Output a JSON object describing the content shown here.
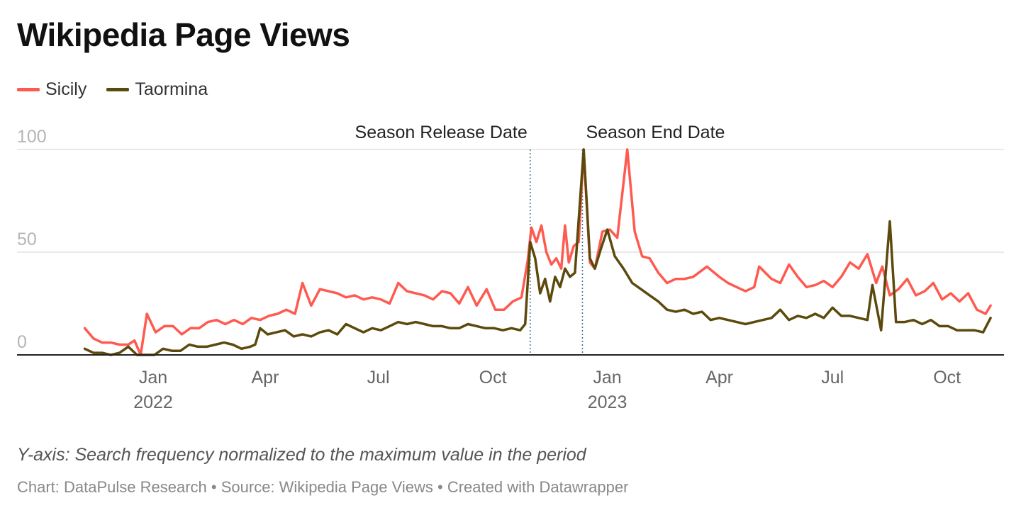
{
  "title": "Wikipedia Page Views",
  "notes": "Y-axis: Search frequency normalized to the maximum value in the period",
  "credit": "Chart: DataPulse Research • Source: Wikipedia Page Views • Created with Datawrapper",
  "chart_data": {
    "type": "line",
    "title": "Wikipedia Page Views",
    "xlabel": "",
    "ylabel": "",
    "ylim": [
      0,
      100
    ],
    "grid": true,
    "legend_placement": "top-left",
    "y_ticks": [
      {
        "value": 0,
        "label": "0"
      },
      {
        "value": 50,
        "label": "50"
      },
      {
        "value": 100,
        "label": "100"
      }
    ],
    "x_ticks": [
      {
        "date": "2022-01-01",
        "label": "Jan",
        "year": "2022"
      },
      {
        "date": "2022-04-01",
        "label": "Apr",
        "year": ""
      },
      {
        "date": "2022-07-01",
        "label": "Jul",
        "year": ""
      },
      {
        "date": "2022-10-01",
        "label": "Oct",
        "year": ""
      },
      {
        "date": "2023-01-01",
        "label": "Jan",
        "year": "2023"
      },
      {
        "date": "2023-04-01",
        "label": "Apr",
        "year": ""
      },
      {
        "date": "2023-07-01",
        "label": "Jul",
        "year": ""
      },
      {
        "date": "2023-10-01",
        "label": "Oct",
        "year": ""
      }
    ],
    "annotations": [
      {
        "date": "2022-10-31",
        "label": "Season Release Date",
        "align": "left"
      },
      {
        "date": "2022-12-12",
        "label": "Season End Date",
        "align": "right"
      }
    ],
    "series": [
      {
        "name": "Sicily",
        "color": "#ff5a4f",
        "points": [
          [
            "2021-11-07",
            13
          ],
          [
            "2021-11-14",
            8
          ],
          [
            "2021-11-21",
            6
          ],
          [
            "2021-11-28",
            6
          ],
          [
            "2021-12-05",
            5
          ],
          [
            "2021-12-12",
            5
          ],
          [
            "2021-12-17",
            7
          ],
          [
            "2021-12-22",
            0
          ],
          [
            "2021-12-27",
            20
          ],
          [
            "2022-01-03",
            11
          ],
          [
            "2022-01-10",
            14
          ],
          [
            "2022-01-17",
            14
          ],
          [
            "2022-01-24",
            10
          ],
          [
            "2022-01-31",
            13
          ],
          [
            "2022-02-07",
            13
          ],
          [
            "2022-02-14",
            16
          ],
          [
            "2022-02-21",
            17
          ],
          [
            "2022-02-28",
            15
          ],
          [
            "2022-03-07",
            17
          ],
          [
            "2022-03-14",
            15
          ],
          [
            "2022-03-21",
            18
          ],
          [
            "2022-03-28",
            17
          ],
          [
            "2022-04-04",
            19
          ],
          [
            "2022-04-11",
            20
          ],
          [
            "2022-04-18",
            22
          ],
          [
            "2022-04-25",
            20
          ],
          [
            "2022-05-01",
            35
          ],
          [
            "2022-05-08",
            24
          ],
          [
            "2022-05-15",
            32
          ],
          [
            "2022-05-22",
            31
          ],
          [
            "2022-05-29",
            30
          ],
          [
            "2022-06-05",
            28
          ],
          [
            "2022-06-12",
            29
          ],
          [
            "2022-06-19",
            27
          ],
          [
            "2022-06-26",
            28
          ],
          [
            "2022-07-03",
            27
          ],
          [
            "2022-07-10",
            25
          ],
          [
            "2022-07-17",
            35
          ],
          [
            "2022-07-24",
            31
          ],
          [
            "2022-07-31",
            30
          ],
          [
            "2022-08-07",
            29
          ],
          [
            "2022-08-14",
            27
          ],
          [
            "2022-08-21",
            31
          ],
          [
            "2022-08-28",
            30
          ],
          [
            "2022-09-04",
            25
          ],
          [
            "2022-09-11",
            33
          ],
          [
            "2022-09-18",
            24
          ],
          [
            "2022-09-26",
            32
          ],
          [
            "2022-10-03",
            22
          ],
          [
            "2022-10-10",
            22
          ],
          [
            "2022-10-17",
            26
          ],
          [
            "2022-10-24",
            28
          ],
          [
            "2022-10-29",
            46
          ],
          [
            "2022-11-01",
            62
          ],
          [
            "2022-11-05",
            55
          ],
          [
            "2022-11-09",
            63
          ],
          [
            "2022-11-13",
            50
          ],
          [
            "2022-11-17",
            44
          ],
          [
            "2022-11-21",
            47
          ],
          [
            "2022-11-25",
            42
          ],
          [
            "2022-11-28",
            63
          ],
          [
            "2022-12-01",
            45
          ],
          [
            "2022-12-05",
            53
          ],
          [
            "2022-12-09",
            55
          ],
          [
            "2022-12-13",
            100
          ],
          [
            "2022-12-18",
            45
          ],
          [
            "2022-12-22",
            42
          ],
          [
            "2022-12-28",
            60
          ],
          [
            "2023-01-03",
            61
          ],
          [
            "2023-01-09",
            57
          ],
          [
            "2023-01-17",
            100
          ],
          [
            "2023-01-23",
            60
          ],
          [
            "2023-01-29",
            48
          ],
          [
            "2023-02-04",
            47
          ],
          [
            "2023-02-11",
            40
          ],
          [
            "2023-02-18",
            35
          ],
          [
            "2023-02-25",
            37
          ],
          [
            "2023-03-04",
            37
          ],
          [
            "2023-03-11",
            38
          ],
          [
            "2023-03-22",
            43
          ],
          [
            "2023-04-01",
            38
          ],
          [
            "2023-04-08",
            35
          ],
          [
            "2023-04-15",
            33
          ],
          [
            "2023-04-22",
            31
          ],
          [
            "2023-04-29",
            33
          ],
          [
            "2023-05-03",
            43
          ],
          [
            "2023-05-13",
            37
          ],
          [
            "2023-05-20",
            35
          ],
          [
            "2023-05-27",
            44
          ],
          [
            "2023-06-03",
            38
          ],
          [
            "2023-06-10",
            33
          ],
          [
            "2023-06-17",
            34
          ],
          [
            "2023-06-24",
            36
          ],
          [
            "2023-07-01",
            33
          ],
          [
            "2023-07-08",
            38
          ],
          [
            "2023-07-15",
            45
          ],
          [
            "2023-07-22",
            42
          ],
          [
            "2023-07-29",
            49
          ],
          [
            "2023-08-05",
            35
          ],
          [
            "2023-08-10",
            43
          ],
          [
            "2023-08-16",
            29
          ],
          [
            "2023-08-23",
            32
          ],
          [
            "2023-08-30",
            37
          ],
          [
            "2023-09-06",
            29
          ],
          [
            "2023-09-13",
            31
          ],
          [
            "2023-09-20",
            35
          ],
          [
            "2023-09-27",
            27
          ],
          [
            "2023-10-04",
            30
          ],
          [
            "2023-10-11",
            26
          ],
          [
            "2023-10-18",
            30
          ],
          [
            "2023-10-25",
            22
          ],
          [
            "2023-11-01",
            20
          ],
          [
            "2023-11-05",
            24
          ]
        ]
      },
      {
        "name": "Taormina",
        "color": "#5c4a0c",
        "points": [
          [
            "2021-11-07",
            3
          ],
          [
            "2021-11-14",
            1
          ],
          [
            "2021-11-21",
            1
          ],
          [
            "2021-11-28",
            0
          ],
          [
            "2021-12-05",
            1
          ],
          [
            "2021-12-12",
            4
          ],
          [
            "2021-12-19",
            0
          ],
          [
            "2021-12-26",
            0
          ],
          [
            "2022-01-02",
            0
          ],
          [
            "2022-01-09",
            3
          ],
          [
            "2022-01-16",
            2
          ],
          [
            "2022-01-23",
            2
          ],
          [
            "2022-01-30",
            5
          ],
          [
            "2022-02-06",
            4
          ],
          [
            "2022-02-13",
            4
          ],
          [
            "2022-02-20",
            5
          ],
          [
            "2022-02-27",
            6
          ],
          [
            "2022-03-06",
            5
          ],
          [
            "2022-03-13",
            3
          ],
          [
            "2022-03-20",
            4
          ],
          [
            "2022-03-24",
            5
          ],
          [
            "2022-03-28",
            13
          ],
          [
            "2022-04-03",
            10
          ],
          [
            "2022-04-10",
            11
          ],
          [
            "2022-04-17",
            12
          ],
          [
            "2022-04-24",
            9
          ],
          [
            "2022-05-01",
            10
          ],
          [
            "2022-05-08",
            9
          ],
          [
            "2022-05-15",
            11
          ],
          [
            "2022-05-22",
            12
          ],
          [
            "2022-05-29",
            10
          ],
          [
            "2022-06-05",
            15
          ],
          [
            "2022-06-12",
            13
          ],
          [
            "2022-06-19",
            11
          ],
          [
            "2022-06-26",
            13
          ],
          [
            "2022-07-03",
            12
          ],
          [
            "2022-07-10",
            14
          ],
          [
            "2022-07-17",
            16
          ],
          [
            "2022-07-24",
            15
          ],
          [
            "2022-07-31",
            16
          ],
          [
            "2022-08-07",
            15
          ],
          [
            "2022-08-14",
            14
          ],
          [
            "2022-08-21",
            14
          ],
          [
            "2022-08-28",
            13
          ],
          [
            "2022-09-04",
            13
          ],
          [
            "2022-09-11",
            15
          ],
          [
            "2022-09-18",
            14
          ],
          [
            "2022-09-25",
            13
          ],
          [
            "2022-10-02",
            13
          ],
          [
            "2022-10-09",
            12
          ],
          [
            "2022-10-16",
            13
          ],
          [
            "2022-10-23",
            12
          ],
          [
            "2022-10-27",
            15
          ],
          [
            "2022-10-31",
            55
          ],
          [
            "2022-11-04",
            47
          ],
          [
            "2022-11-08",
            30
          ],
          [
            "2022-11-12",
            37
          ],
          [
            "2022-11-16",
            26
          ],
          [
            "2022-11-20",
            38
          ],
          [
            "2022-11-24",
            33
          ],
          [
            "2022-11-28",
            42
          ],
          [
            "2022-12-02",
            38
          ],
          [
            "2022-12-06",
            40
          ],
          [
            "2022-12-13",
            100
          ],
          [
            "2022-12-18",
            47
          ],
          [
            "2022-12-22",
            42
          ],
          [
            "2022-12-27",
            52
          ],
          [
            "2023-01-01",
            61
          ],
          [
            "2023-01-07",
            48
          ],
          [
            "2023-01-14",
            42
          ],
          [
            "2023-01-21",
            35
          ],
          [
            "2023-01-28",
            32
          ],
          [
            "2023-02-04",
            29
          ],
          [
            "2023-02-11",
            26
          ],
          [
            "2023-02-18",
            22
          ],
          [
            "2023-02-25",
            21
          ],
          [
            "2023-03-04",
            22
          ],
          [
            "2023-03-11",
            20
          ],
          [
            "2023-03-18",
            21
          ],
          [
            "2023-03-25",
            17
          ],
          [
            "2023-04-01",
            18
          ],
          [
            "2023-04-08",
            17
          ],
          [
            "2023-04-15",
            16
          ],
          [
            "2023-04-22",
            15
          ],
          [
            "2023-04-29",
            16
          ],
          [
            "2023-05-06",
            17
          ],
          [
            "2023-05-13",
            18
          ],
          [
            "2023-05-20",
            22
          ],
          [
            "2023-05-27",
            17
          ],
          [
            "2023-06-03",
            19
          ],
          [
            "2023-06-10",
            18
          ],
          [
            "2023-06-17",
            20
          ],
          [
            "2023-06-24",
            18
          ],
          [
            "2023-07-01",
            23
          ],
          [
            "2023-07-08",
            19
          ],
          [
            "2023-07-15",
            19
          ],
          [
            "2023-07-22",
            18
          ],
          [
            "2023-07-29",
            17
          ],
          [
            "2023-08-02",
            34
          ],
          [
            "2023-08-09",
            12
          ],
          [
            "2023-08-16",
            65
          ],
          [
            "2023-08-21",
            16
          ],
          [
            "2023-08-28",
            16
          ],
          [
            "2023-09-04",
            17
          ],
          [
            "2023-09-11",
            15
          ],
          [
            "2023-09-18",
            17
          ],
          [
            "2023-09-25",
            14
          ],
          [
            "2023-10-02",
            14
          ],
          [
            "2023-10-09",
            12
          ],
          [
            "2023-10-16",
            12
          ],
          [
            "2023-10-23",
            12
          ],
          [
            "2023-10-30",
            11
          ],
          [
            "2023-11-05",
            18
          ]
        ]
      }
    ]
  }
}
